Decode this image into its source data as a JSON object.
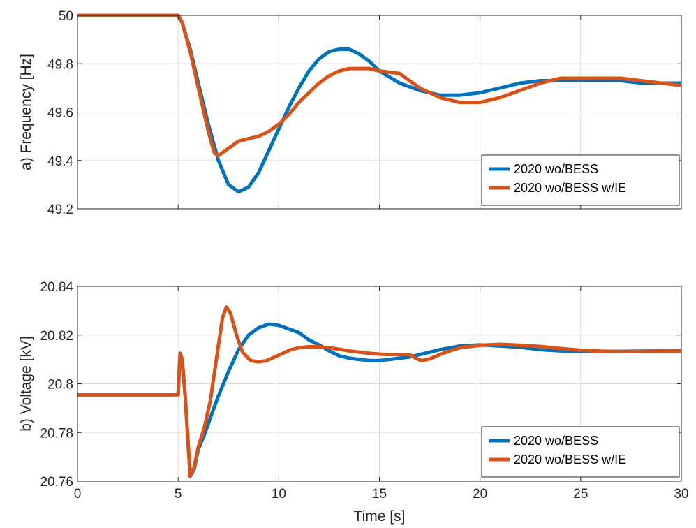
{
  "chart_data": [
    {
      "type": "line",
      "panel": "a",
      "ylabel": "a) Frequency [Hz]",
      "xlabel": "",
      "xlim": [
        0,
        30
      ],
      "ylim": [
        49.2,
        50.0
      ],
      "xticks": [
        0,
        5,
        10,
        15,
        20,
        25,
        30
      ],
      "yticks": [
        49.2,
        49.4,
        49.6,
        49.8,
        50.0
      ],
      "ytick_labels": [
        "49.2",
        "49.4",
        "49.6",
        "49.8",
        "50"
      ],
      "show_xtick_labels": false,
      "grid": true,
      "legend_position": "bottom-right",
      "series": [
        {
          "name": "2020 wo/BESS",
          "color": "#0072BD",
          "x": [
            0,
            5,
            5.2,
            5.6,
            6,
            6.5,
            7,
            7.5,
            8,
            8.5,
            9,
            9.5,
            10,
            10.5,
            11,
            11.5,
            12,
            12.5,
            13,
            13.5,
            14,
            14.5,
            15,
            16,
            17,
            18,
            19,
            20,
            21,
            22,
            23,
            24,
            25,
            26,
            27,
            28,
            29,
            30
          ],
          "y": [
            50.0,
            50.0,
            49.97,
            49.86,
            49.72,
            49.55,
            49.4,
            49.3,
            49.27,
            49.29,
            49.35,
            49.44,
            49.53,
            49.62,
            49.7,
            49.77,
            49.82,
            49.85,
            49.86,
            49.86,
            49.84,
            49.81,
            49.77,
            49.72,
            49.69,
            49.67,
            49.67,
            49.68,
            49.7,
            49.72,
            49.73,
            49.73,
            49.73,
            49.73,
            49.73,
            49.72,
            49.72,
            49.72
          ]
        },
        {
          "name": "2020 wo/BESS w/IE",
          "color": "#D95319",
          "x": [
            0,
            5,
            5.2,
            5.6,
            6,
            6.5,
            6.8,
            7,
            7.5,
            8,
            8.5,
            9,
            9.5,
            10,
            10.5,
            11,
            11.5,
            12,
            12.5,
            13,
            13.5,
            14,
            14.5,
            15,
            16,
            16.5,
            17,
            17.5,
            18,
            18.5,
            19,
            19.5,
            20,
            21,
            22,
            23,
            24,
            25,
            26,
            27,
            28,
            29,
            30
          ],
          "y": [
            50.0,
            50.0,
            49.97,
            49.85,
            49.7,
            49.52,
            49.43,
            49.42,
            49.45,
            49.48,
            49.49,
            49.5,
            49.52,
            49.55,
            49.59,
            49.64,
            49.68,
            49.72,
            49.75,
            49.77,
            49.78,
            49.78,
            49.78,
            49.77,
            49.76,
            49.73,
            49.7,
            49.68,
            49.66,
            49.65,
            49.64,
            49.64,
            49.64,
            49.66,
            49.69,
            49.72,
            49.74,
            49.74,
            49.74,
            49.74,
            49.73,
            49.72,
            49.71
          ]
        }
      ]
    },
    {
      "type": "line",
      "panel": "b",
      "ylabel": "b) Voltage [kV]",
      "xlabel": "Time [s]",
      "xlim": [
        0,
        30
      ],
      "ylim": [
        20.76,
        20.84
      ],
      "xticks": [
        0,
        5,
        10,
        15,
        20,
        25,
        30
      ],
      "xtick_labels": [
        "0",
        "5",
        "10",
        "15",
        "20",
        "25",
        "30"
      ],
      "yticks": [
        20.76,
        20.78,
        20.8,
        20.82,
        20.84
      ],
      "ytick_labels": [
        "20.76",
        "20.78",
        "20.8",
        "20.82",
        "20.84"
      ],
      "show_xtick_labels": true,
      "grid": true,
      "legend_position": "bottom-right",
      "series": [
        {
          "name": "2020 wo/BESS",
          "color": "#0072BD",
          "x": [
            0,
            5,
            5.05,
            5.1,
            5.2,
            5.35,
            5.5,
            5.6,
            5.8,
            6,
            6.3,
            6.6,
            7,
            7.5,
            8,
            8.5,
            9,
            9.5,
            10,
            10.5,
            11,
            11.5,
            12,
            12.5,
            13,
            13.5,
            14,
            14.5,
            15,
            15.5,
            16,
            16.5,
            17,
            18,
            19,
            20,
            21,
            22,
            23,
            24,
            25,
            26,
            27,
            28,
            29,
            30
          ],
          "y": [
            20.7955,
            20.7955,
            20.805,
            20.8125,
            20.81,
            20.795,
            20.775,
            20.762,
            20.765,
            20.773,
            20.779,
            20.786,
            20.795,
            20.805,
            20.814,
            20.82,
            20.823,
            20.8245,
            20.824,
            20.8225,
            20.821,
            20.818,
            20.816,
            20.8135,
            20.8115,
            20.8105,
            20.81,
            20.8095,
            20.8095,
            20.81,
            20.8105,
            20.811,
            20.812,
            20.814,
            20.8155,
            20.816,
            20.8155,
            20.815,
            20.814,
            20.8135,
            20.8132,
            20.8132,
            20.8133,
            20.8134,
            20.8135,
            20.8135
          ]
        },
        {
          "name": "2020 wo/BESS w/IE",
          "color": "#D95319",
          "x": [
            0,
            5,
            5.05,
            5.1,
            5.2,
            5.35,
            5.5,
            5.6,
            5.8,
            6,
            6.3,
            6.6,
            6.9,
            7.2,
            7.4,
            7.6,
            7.9,
            8.2,
            8.6,
            9,
            9.4,
            9.8,
            10.2,
            10.6,
            11,
            11.5,
            12,
            12.5,
            13,
            13.5,
            14,
            14.5,
            15,
            15.5,
            16,
            16.5,
            16.8,
            17.1,
            17.5,
            18,
            18.5,
            19,
            20,
            21,
            22,
            23,
            24,
            25,
            26,
            27,
            28,
            29,
            30
          ],
          "y": [
            20.7955,
            20.7955,
            20.805,
            20.8125,
            20.81,
            20.795,
            20.775,
            20.762,
            20.766,
            20.774,
            20.782,
            20.793,
            20.81,
            20.827,
            20.8315,
            20.829,
            20.82,
            20.813,
            20.8095,
            20.809,
            20.8095,
            20.811,
            20.8125,
            20.814,
            20.8148,
            20.8152,
            20.8152,
            20.8148,
            20.8142,
            20.8135,
            20.813,
            20.8125,
            20.8122,
            20.812,
            20.812,
            20.812,
            20.8105,
            20.8095,
            20.8102,
            20.812,
            20.8135,
            20.8148,
            20.8158,
            20.8162,
            20.8158,
            20.8153,
            20.8145,
            20.8138,
            20.8134,
            20.8132,
            20.8133,
            20.8134,
            20.8134
          ]
        }
      ]
    }
  ]
}
